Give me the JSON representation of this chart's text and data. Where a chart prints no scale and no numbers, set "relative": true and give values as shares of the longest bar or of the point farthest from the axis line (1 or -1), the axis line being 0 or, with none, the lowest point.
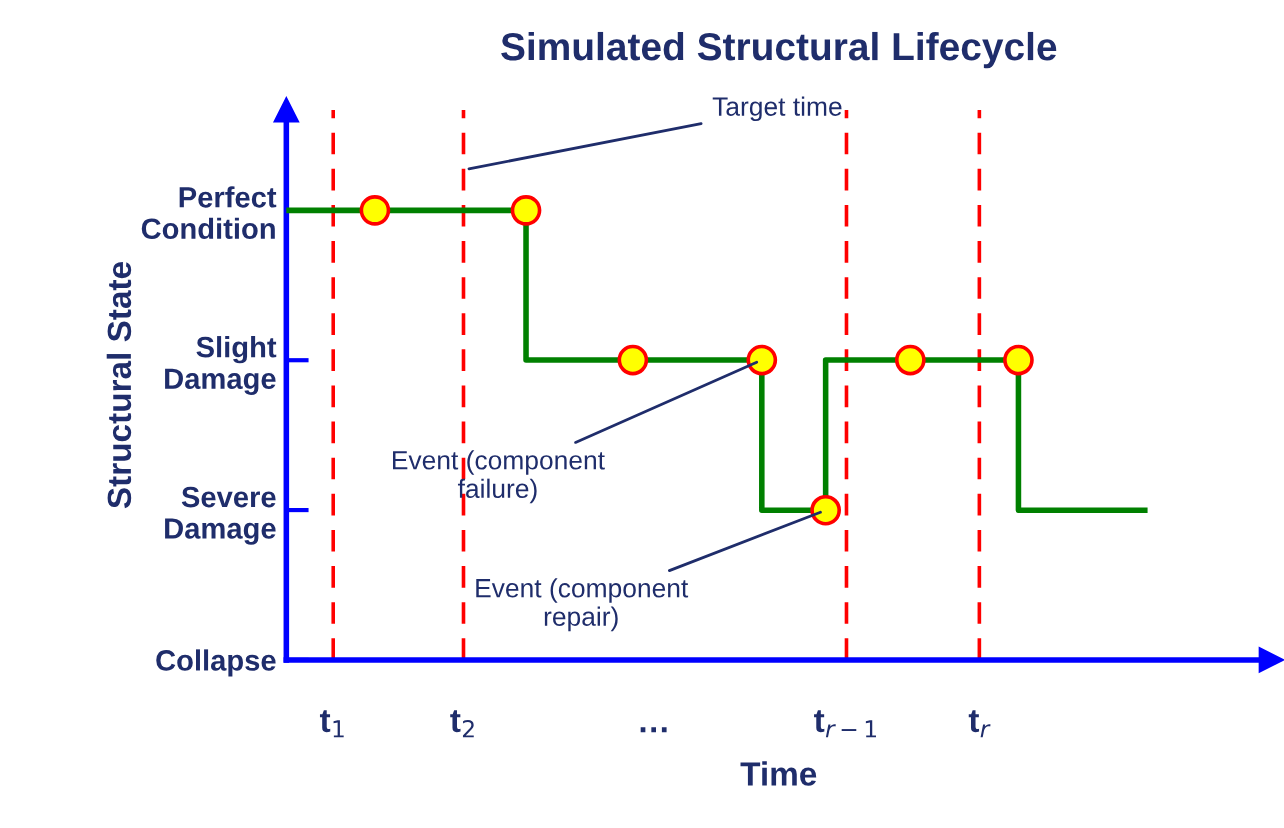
{
  "chart_data": {
    "type": "step",
    "title": "Simulated Structural Lifecycle",
    "xlabel": "Time",
    "ylabel": "Structural State",
    "series": [
      {
        "color": "#008000",
        "x": [
          0.64,
          2.48,
          4.29,
          4.78,
          6.26,
          7.23
        ],
        "values": [
          1,
          0.667,
          0.333,
          0.667,
          0.333,
          0.333
        ]
      },
      {
        "type": "scatter",
        "marker": "circle",
        "color": "#ffff00",
        "x": [
          1.32,
          2.48,
          3.3,
          4.29,
          4.78,
          5.43,
          6.26
        ],
        "values": [
          1,
          1,
          0.667,
          0.667,
          0.333,
          0.667,
          0.667
        ]
      }
    ],
    "relative": true,
    "xlim": [
      0.64,
      8.2
    ],
    "xticks": [
      {
        "value": 1,
        "label": "t$_{1}$"
      },
      {
        "value": 2,
        "label": "t$_{2}$"
      },
      {
        "value": 3.46,
        "label": "…"
      },
      {
        "value": 4.94,
        "label": "t$_{r−1}$"
      },
      {
        "value": 5.96,
        "label": "t$_{r}$"
      }
    ],
    "y_categories": [
      "Perfect\nCondition",
      "Slight\nDamage",
      "Severe\nDamage",
      "Collapse"
    ],
    "ref_lines": [
      {
        "axis": "x",
        "value": 1,
        "color": "#ff0000",
        "line_style": "dashed"
      },
      {
        "axis": "x",
        "value": 2,
        "color": "#ff0000",
        "line_style": "dashed"
      },
      {
        "axis": "x",
        "value": 4.94,
        "color": "#ff0000",
        "line_style": "dashed"
      },
      {
        "axis": "x",
        "value": 5.96,
        "color": "#ff0000",
        "line_style": "dashed"
      }
    ],
    "annotations": [
      {
        "text": "Target time",
        "x": 2,
        "y": 1.09
      },
      {
        "text": "Event (component\nfailure)",
        "x": 4.29,
        "y": 0.667
      },
      {
        "text": "Event (component\nrepair)",
        "x": 4.78,
        "y": 0.333
      }
    ],
    "grid": false,
    "line_style": "solid"
  }
}
